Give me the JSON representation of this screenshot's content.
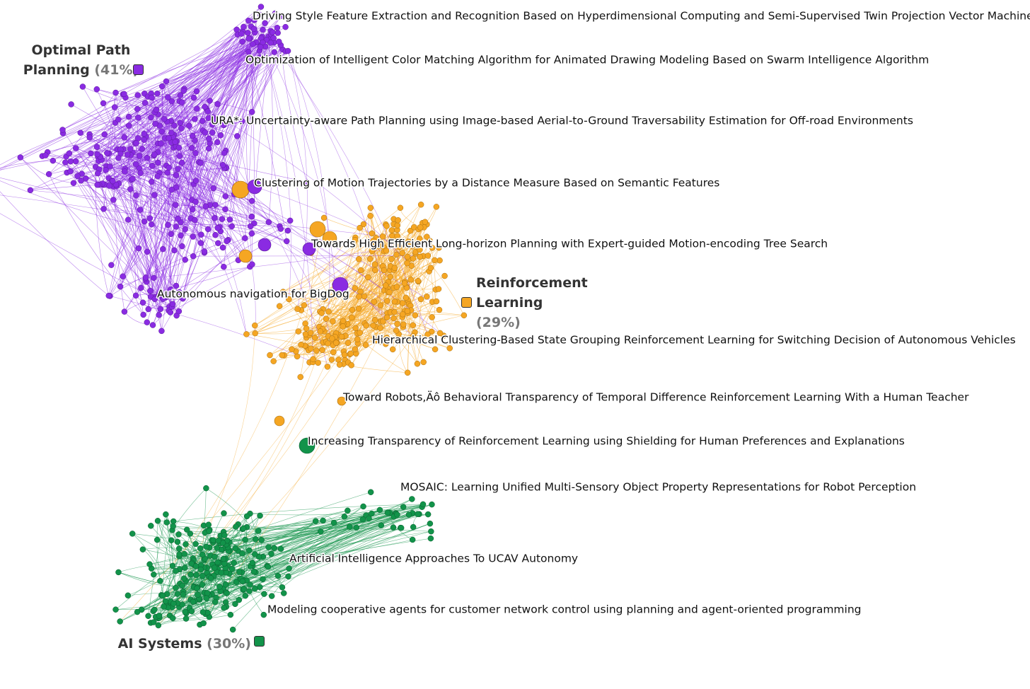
{
  "clusters": [
    {
      "name": "Optimal Path Planning",
      "share": "(41%)"
    },
    {
      "name": "Reinforcement Learning",
      "share": "(29%)"
    },
    {
      "name": "AI Systems",
      "share": "(30%)"
    }
  ],
  "papers": [
    "Driving Style Feature Extraction and Recognition Based on Hyperdimensional Computing and Semi-Supervised Twin Projection Vector Machine",
    "Optimization of Intelligent Color Matching Algorithm for Animated Drawing Modeling Based on Swarm Intelligence Algorithm",
    "URA*: Uncertainty-aware Path Planning using Image-based Aerial-to-Ground Traversability Estimation for Off-road Environments",
    "Clustering of Motion Trajectories by a Distance Measure Based on Semantic Features",
    "Towards High Efficient Long-horizon Planning with Expert-guided Motion-encoding Tree Search",
    "Autonomous navigation for BigDog",
    "Hierarchical Clustering-Based State Grouping Reinforcement Learning for Switching Decision of Autonomous Vehicles",
    "Toward Robots,Äô Behavioral Transparency of Temporal Difference Reinforcement Learning With a Human Teacher",
    "Increasing Transparency of Reinforcement Learning using Shielding for Human Preferences and Explanations",
    "MOSAIC: Learning Unified Multi-Sensory Object Property Representations for Robot Perception",
    "Artificial Intelligence Approaches To UCAV Autonomy",
    "Modeling cooperative agents for customer network control using planning and agent-oriented programming"
  ]
}
